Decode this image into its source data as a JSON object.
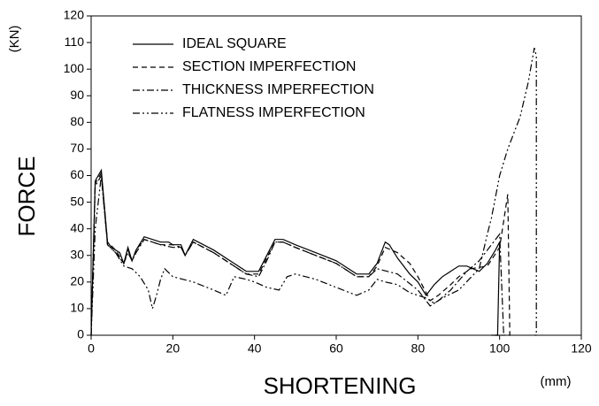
{
  "chart_data": {
    "type": "line",
    "x_label": "SHORTENING",
    "x_unit": "(mm)",
    "y_label": "FORCE",
    "y_unit": "(KN)",
    "xlim": [
      0,
      120
    ],
    "xticks": [
      0,
      20,
      40,
      60,
      80,
      100,
      120
    ],
    "ylim": [
      0,
      120
    ],
    "yticks": [
      0,
      10,
      20,
      30,
      40,
      50,
      60,
      70,
      80,
      90,
      100,
      110,
      120
    ],
    "legend": "top-left",
    "series": [
      {
        "name": "IDEAL SQUARE",
        "color": "#000000",
        "dash": "none",
        "x": [
          0,
          1,
          2.5,
          4,
          5,
          6,
          7,
          8,
          9,
          10,
          11,
          13,
          15,
          17,
          19,
          20,
          22,
          23,
          25,
          30,
          35,
          38,
          41,
          43,
          45,
          47,
          50,
          55,
          60,
          65,
          68,
          70,
          72,
          73,
          75,
          78,
          80,
          82,
          84,
          86,
          88,
          90,
          92,
          95,
          97,
          99,
          100,
          99.5,
          98
        ],
        "values": [
          0,
          58,
          62,
          35,
          33,
          32,
          31,
          27,
          33,
          28,
          32,
          37,
          36,
          35,
          35,
          34,
          34,
          30,
          36,
          32,
          27,
          24,
          24,
          30,
          36,
          36,
          34,
          31,
          28,
          23,
          23,
          27,
          35,
          34,
          29,
          23,
          20,
          15,
          19,
          22,
          24,
          26,
          26,
          24,
          27,
          32,
          35,
          0,
          0
        ]
      },
      {
        "name": "SECTION IMPERFECTION",
        "color": "#000000",
        "dash": "6,4",
        "x": [
          0,
          1,
          2.5,
          4,
          6,
          8,
          9,
          10,
          11,
          13,
          15,
          17,
          20,
          22,
          23,
          25,
          30,
          35,
          38,
          41,
          43,
          45,
          47,
          50,
          55,
          60,
          65,
          68,
          70,
          72,
          75,
          78,
          80,
          83,
          85,
          88,
          90,
          93,
          97,
          100,
          102,
          102.5,
          101
        ],
        "values": [
          0,
          57,
          61,
          35,
          32,
          27,
          32,
          28,
          32,
          36,
          35,
          34,
          34,
          33,
          30,
          35,
          31,
          26,
          23,
          23,
          29,
          35,
          35,
          33,
          30,
          27,
          22,
          22,
          26,
          33,
          31,
          27,
          22,
          13,
          15,
          19,
          22,
          25,
          26,
          33,
          53,
          0,
          0
        ]
      },
      {
        "name": "THICKNESS IMPERFECTION",
        "color": "#000000",
        "dash": "8,3,2,3",
        "x": [
          0,
          1,
          2.5,
          4,
          6,
          8,
          9,
          10,
          11,
          13,
          15,
          17,
          20,
          22,
          23,
          25,
          30,
          35,
          38,
          41,
          43,
          45,
          47,
          50,
          55,
          60,
          65,
          68,
          70,
          75,
          80,
          83,
          85,
          88,
          92,
          95,
          98,
          100,
          101,
          99
        ],
        "values": [
          0,
          56,
          60,
          34,
          31,
          27,
          31,
          28,
          31,
          36,
          35,
          34,
          33,
          33,
          30,
          35,
          31,
          26,
          23,
          22,
          28,
          35,
          35,
          33,
          30,
          27,
          22,
          22,
          25,
          23,
          17,
          11,
          13,
          17,
          24,
          28,
          34,
          38,
          0,
          0
        ]
      },
      {
        "name": "FLATNESS IMPERFECTION",
        "color": "#000000",
        "dash": "8,3,2,3,2,3",
        "x": [
          0,
          1,
          2.5,
          4,
          6,
          8,
          10,
          12,
          14,
          15,
          16,
          17,
          18,
          20,
          25,
          30,
          33,
          35,
          38,
          40,
          43,
          46,
          48,
          50,
          55,
          60,
          65,
          68,
          70,
          72,
          75,
          78,
          82,
          84,
          86,
          90,
          95,
          97,
          98,
          100,
          102,
          105,
          107,
          108.5,
          109,
          109,
          108
        ],
        "values": [
          0,
          40,
          60,
          34,
          31,
          26,
          25,
          22,
          17,
          10,
          15,
          21,
          25,
          22,
          20,
          17,
          15,
          22,
          21,
          20,
          18,
          17,
          22,
          23,
          21,
          18,
          15,
          17,
          21,
          20,
          19,
          16,
          14,
          12,
          14,
          17,
          25,
          38,
          44,
          60,
          70,
          82,
          95,
          108,
          105,
          0,
          0
        ]
      }
    ]
  }
}
